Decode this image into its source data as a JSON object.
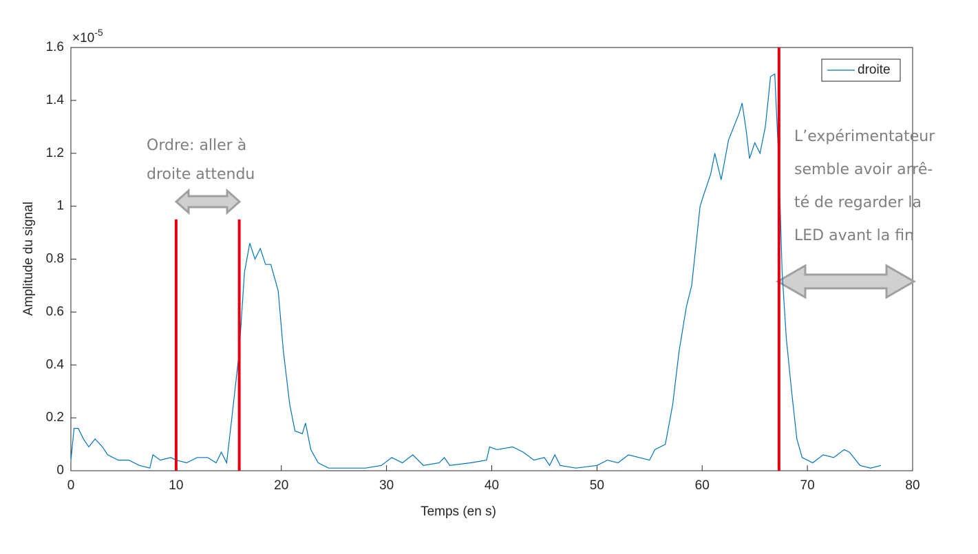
{
  "chart_data": {
    "type": "line",
    "xlabel": "Temps (en s)",
    "ylabel": "Amplitude du signal",
    "y_multiplier": "×10",
    "y_multiplier_exponent": "-5",
    "xlim": [
      0,
      80
    ],
    "ylim": [
      0,
      1.6
    ],
    "xticks": [
      0,
      10,
      20,
      30,
      40,
      50,
      60,
      70,
      80
    ],
    "yticks": [
      0,
      0.2,
      0.4,
      0.6,
      0.8,
      1,
      1.2,
      1.4,
      1.6
    ],
    "grid": false,
    "legend": "top-right",
    "x": [
      0,
      0.3,
      0.7,
      1.2,
      1.7,
      2.3,
      3,
      3.5,
      4.5,
      5.5,
      6.5,
      7.5,
      7.8,
      8.5,
      9.5,
      10,
      11,
      12,
      13,
      13.8,
      14.3,
      14.8,
      15.3,
      16,
      16.5,
      17,
      17.5,
      18,
      18.5,
      19,
      19.7,
      20.2,
      20.8,
      21.3,
      22,
      22.3,
      22.8,
      23.5,
      24.5,
      26,
      28,
      29.5,
      30.5,
      31.5,
      32.5,
      33.5,
      35,
      35.5,
      36,
      38,
      39.5,
      39.8,
      40.5,
      42,
      43,
      44,
      45,
      45.5,
      46,
      46.5,
      48,
      50,
      51,
      52,
      53,
      54,
      55,
      55.5,
      56.5,
      57.2,
      57.8,
      58.5,
      59,
      59.8,
      60.2,
      60.8,
      61.2,
      61.8,
      62.5,
      63,
      63.5,
      63.8,
      64.2,
      64.5,
      65,
      65.5,
      66,
      66.5,
      66.9,
      67.3,
      67.6,
      68,
      68.5,
      69,
      69.5,
      70.5,
      71.5,
      72.5,
      73.5,
      74,
      75,
      76,
      77
    ],
    "series": [
      {
        "name": "droite",
        "color": "#0072bd",
        "values": [
          0.04,
          0.16,
          0.16,
          0.12,
          0.09,
          0.12,
          0.09,
          0.06,
          0.04,
          0.04,
          0.02,
          0.01,
          0.06,
          0.04,
          0.05,
          0.04,
          0.03,
          0.05,
          0.05,
          0.03,
          0.07,
          0.03,
          0.2,
          0.45,
          0.75,
          0.86,
          0.8,
          0.84,
          0.78,
          0.78,
          0.68,
          0.45,
          0.25,
          0.15,
          0.14,
          0.18,
          0.08,
          0.03,
          0.01,
          0.01,
          0.01,
          0.02,
          0.05,
          0.03,
          0.06,
          0.02,
          0.03,
          0.05,
          0.02,
          0.03,
          0.04,
          0.09,
          0.08,
          0.09,
          0.07,
          0.04,
          0.05,
          0.02,
          0.06,
          0.02,
          0.01,
          0.02,
          0.04,
          0.03,
          0.06,
          0.05,
          0.04,
          0.08,
          0.1,
          0.25,
          0.45,
          0.62,
          0.7,
          1.0,
          1.05,
          1.12,
          1.2,
          1.1,
          1.25,
          1.3,
          1.35,
          1.39,
          1.28,
          1.18,
          1.24,
          1.2,
          1.3,
          1.49,
          1.5,
          1.15,
          0.75,
          0.5,
          0.3,
          0.12,
          0.05,
          0.03,
          0.06,
          0.05,
          0.08,
          0.07,
          0.02,
          0.01,
          0.02
        ]
      }
    ],
    "markers": [
      {
        "x": 10,
        "ymax": 0.95,
        "color": "#e3000f"
      },
      {
        "x": 16,
        "ymax": 0.95,
        "color": "#e3000f"
      },
      {
        "x": 67.3,
        "ymax": 1.6,
        "color": "#e3000f"
      }
    ],
    "annotations": [
      {
        "lines": [
          "Ordre: aller à",
          "droite attendu"
        ]
      },
      {
        "lines": [
          "L’expérimentateur",
          "semble avoir arrê-",
          "té de regarder la",
          "LED avant la fin"
        ]
      }
    ]
  }
}
